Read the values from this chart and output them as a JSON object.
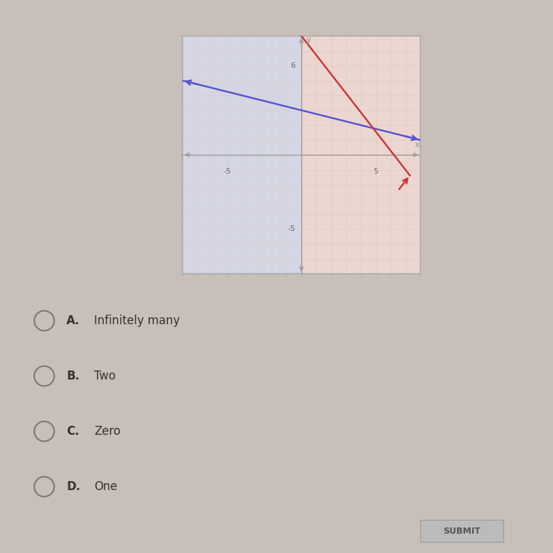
{
  "bg_color": "#c8bfb8",
  "plot_outer_bg": "#d4ccc8",
  "plot_inner_bg": "#e8e0dc",
  "grid_color": "#c8b8b0",
  "axis_color": "#999999",
  "box_border_color": "#aaaaaa",
  "xlim": [
    -8,
    8
  ],
  "ylim": [
    -8,
    8
  ],
  "xticks": [
    -8,
    -7,
    -6,
    -5,
    -4,
    -3,
    -2,
    -1,
    0,
    1,
    2,
    3,
    4,
    5,
    6,
    7,
    8
  ],
  "yticks": [
    -8,
    -7,
    -6,
    -5,
    -4,
    -3,
    -2,
    -1,
    0,
    1,
    2,
    3,
    4,
    5,
    6,
    7,
    8
  ],
  "blue_line_x": [
    -8,
    8
  ],
  "blue_line_y": [
    5.0,
    1.0
  ],
  "blue_color": "#5555cc",
  "red_line_x0": 0,
  "red_line_y0": 8,
  "red_line_x1": 7,
  "red_line_y1": -1,
  "red_color": "#cc3333",
  "line_lw": 1.8,
  "vertical_stripe_color_pink": "#f0d0c8",
  "vertical_stripe_color_blue": "#c8d0e8",
  "answer_choices": [
    {
      "label": "A.",
      "text": "Infinitely many"
    },
    {
      "label": "B.",
      "text": "Two"
    },
    {
      "label": "C.",
      "text": "Zero"
    },
    {
      "label": "D.",
      "text": "One"
    }
  ],
  "submit_button": "SUBMIT"
}
